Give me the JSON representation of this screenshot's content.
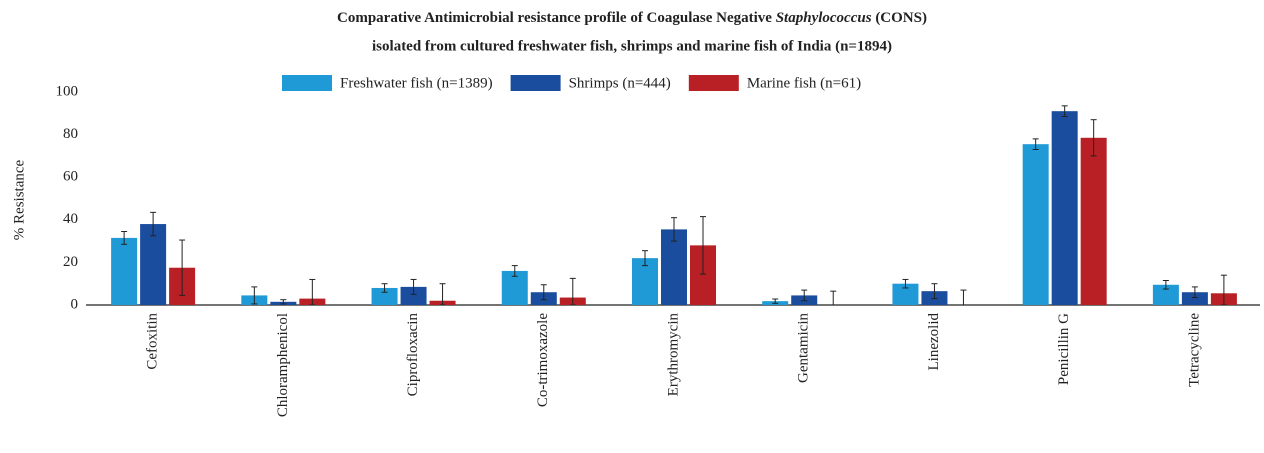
{
  "chart_data": {
    "type": "bar",
    "title": [
      "Comparative Antimicrobial resistance profile of Coagulase Negative ",
      "Staphylococcus",
      " (CONS)",
      "isolated from cultured freshwater fish, shrimps and marine fish of India (n=1894)"
    ],
    "y_label": "% Resistance",
    "categories": [
      "Cefoxitin",
      "Chloramphenicol",
      "Ciprofloxacin",
      "Co-trimoxazole",
      "Erythromycin",
      "Gentamicin",
      "Linezolid",
      "Penicillin G",
      "Tetracycline"
    ],
    "series": [
      {
        "name": "Freshwater fish (n=1389)",
        "color": "#1f9ad6",
        "values": [
          31.5,
          4.5,
          8,
          16,
          22,
          1.8,
          10,
          75.5,
          9.5
        ],
        "errors": [
          3,
          4,
          2,
          2.5,
          3.5,
          1,
          2,
          2.5,
          2
        ]
      },
      {
        "name": "Shrimps (n=444)",
        "color": "#1a4d9e",
        "values": [
          38,
          1.5,
          8.5,
          6,
          35.5,
          4.5,
          6.5,
          91,
          6
        ],
        "errors": [
          5.5,
          1,
          3.5,
          3.5,
          5.5,
          2.5,
          3.5,
          2.5,
          2.5
        ]
      },
      {
        "name": "Marine fish (n=61)",
        "color": "#b92025",
        "values": [
          17.5,
          3,
          2,
          3.5,
          28,
          0,
          0,
          78.5,
          5.5
        ],
        "errors": [
          13,
          9,
          8,
          9,
          13.5,
          6.5,
          7,
          8.5,
          8.5
        ]
      }
    ],
    "ylim": [
      0,
      100
    ],
    "yticks": [
      0,
      20,
      40,
      60,
      80,
      100
    ],
    "legend": "top"
  }
}
